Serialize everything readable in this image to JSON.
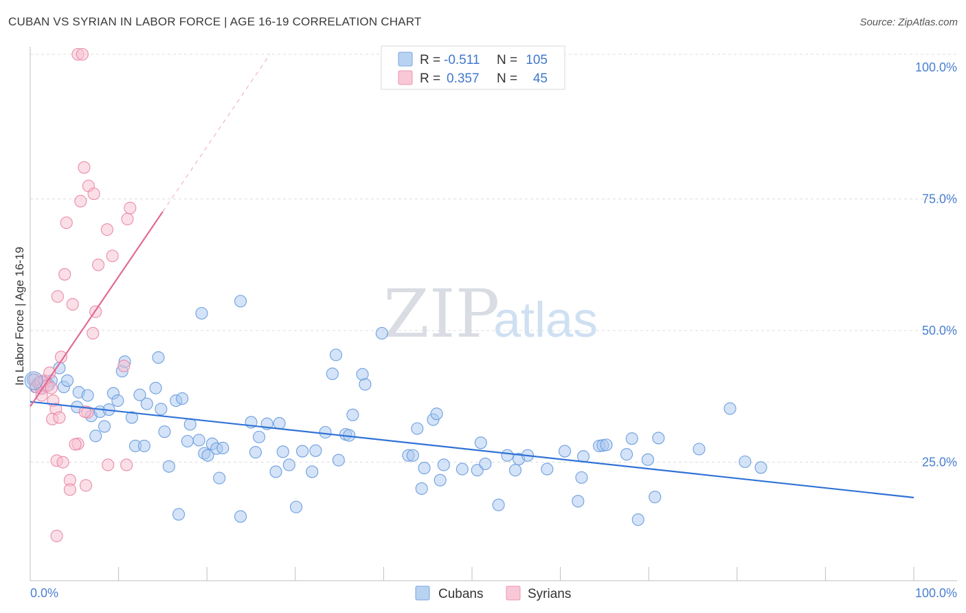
{
  "header": {
    "title": "CUBAN VS SYRIAN IN LABOR FORCE | AGE 16-19 CORRELATION CHART",
    "source": "Source: ZipAtlas.com"
  },
  "watermark": {
    "part1": "ZIP",
    "part2": "atlas"
  },
  "colors": {
    "cubans_fill": "#a9c8f0",
    "cubans_stroke": "#6d9fe0",
    "cubans_line": "#2f72d6",
    "syrians_fill": "#f7bfd0",
    "syrians_stroke": "#ea8aa8",
    "syrians_line": "#e06a94",
    "grid": "#dcdcdc",
    "tick_text": "#4a7fd0"
  },
  "legend_top": {
    "rows": [
      {
        "r_label": "R =",
        "r_value": "-0.511",
        "n_label": "N =",
        "n_value": "105"
      },
      {
        "r_label": "R =",
        "r_value": "0.357",
        "n_label": "N =",
        "n_value": "45"
      }
    ]
  },
  "chart_data": {
    "type": "scatter",
    "title": "CUBAN VS SYRIAN IN LABOR FORCE | AGE 16-19 CORRELATION CHART",
    "xlabel": "",
    "ylabel": "In Labor Force | Age 16-19",
    "xlim": [
      0,
      100
    ],
    "ylim": [
      0,
      100
    ],
    "x_tick_labels": [
      "0.0%",
      "100.0%"
    ],
    "y_ticks": [
      25,
      50,
      75,
      100
    ],
    "y_tick_labels": [
      "25.0%",
      "50.0%",
      "75.0%",
      "100.0%"
    ],
    "grid": true,
    "legend_position": "bottom-center",
    "series": [
      {
        "name": "Cubans",
        "r": -0.511,
        "n": 105,
        "trend": {
          "x": [
            0,
            100
          ],
          "y": [
            34.0,
            15.8
          ]
        },
        "points": [
          [
            0.3,
            38.2
          ],
          [
            0.6,
            36.8
          ],
          [
            0.9,
            37.5
          ],
          [
            1.2,
            36.5
          ],
          [
            1.5,
            37.0
          ],
          [
            1.8,
            37.8
          ],
          [
            2.1,
            37.2
          ],
          [
            2.4,
            38.0
          ],
          [
            3.3,
            40.4
          ],
          [
            3.8,
            36.8
          ],
          [
            4.2,
            38.0
          ],
          [
            5.5,
            35.8
          ],
          [
            5.3,
            33.0
          ],
          [
            6.5,
            35.2
          ],
          [
            6.9,
            31.3
          ],
          [
            7.4,
            27.5
          ],
          [
            7.9,
            32.1
          ],
          [
            8.4,
            29.3
          ],
          [
            8.9,
            32.5
          ],
          [
            9.4,
            35.6
          ],
          [
            9.9,
            34.2
          ],
          [
            10.4,
            39.8
          ],
          [
            10.7,
            41.6
          ],
          [
            11.5,
            31.0
          ],
          [
            11.9,
            25.6
          ],
          [
            12.4,
            35.3
          ],
          [
            12.9,
            25.6
          ],
          [
            13.2,
            33.6
          ],
          [
            14.2,
            36.6
          ],
          [
            14.5,
            42.4
          ],
          [
            14.8,
            32.6
          ],
          [
            15.2,
            28.3
          ],
          [
            15.7,
            21.7
          ],
          [
            16.5,
            34.2
          ],
          [
            16.8,
            12.6
          ],
          [
            17.2,
            34.6
          ],
          [
            17.8,
            26.5
          ],
          [
            18.1,
            29.7
          ],
          [
            19.1,
            26.7
          ],
          [
            19.4,
            50.8
          ],
          [
            19.7,
            24.2
          ],
          [
            20.1,
            23.8
          ],
          [
            20.6,
            26.0
          ],
          [
            21.1,
            25.1
          ],
          [
            21.4,
            19.5
          ],
          [
            21.8,
            25.2
          ],
          [
            23.8,
            53.1
          ],
          [
            23.8,
            12.2
          ],
          [
            25.0,
            30.1
          ],
          [
            25.5,
            24.4
          ],
          [
            25.9,
            27.3
          ],
          [
            26.8,
            29.8
          ],
          [
            27.8,
            20.7
          ],
          [
            28.2,
            29.9
          ],
          [
            28.6,
            24.5
          ],
          [
            29.3,
            22.0
          ],
          [
            30.1,
            14.0
          ],
          [
            30.8,
            24.6
          ],
          [
            31.9,
            20.7
          ],
          [
            32.3,
            24.7
          ],
          [
            33.4,
            28.2
          ],
          [
            34.2,
            39.3
          ],
          [
            34.6,
            42.9
          ],
          [
            34.9,
            22.9
          ],
          [
            35.7,
            27.8
          ],
          [
            36.1,
            27.6
          ],
          [
            36.5,
            31.5
          ],
          [
            37.6,
            39.2
          ],
          [
            37.9,
            37.3
          ],
          [
            39.8,
            47.0
          ],
          [
            42.8,
            23.8
          ],
          [
            43.3,
            23.8
          ],
          [
            43.8,
            28.9
          ],
          [
            44.3,
            17.5
          ],
          [
            44.6,
            21.4
          ],
          [
            45.6,
            30.6
          ],
          [
            46.0,
            31.7
          ],
          [
            46.4,
            19.1
          ],
          [
            46.8,
            22.0
          ],
          [
            48.9,
            21.2
          ],
          [
            51.0,
            26.2
          ],
          [
            50.6,
            21.0
          ],
          [
            51.5,
            22.2
          ],
          [
            53.0,
            14.4
          ],
          [
            54.0,
            23.8
          ],
          [
            54.9,
            21.0
          ],
          [
            55.3,
            23.1
          ],
          [
            56.3,
            23.8
          ],
          [
            58.5,
            21.2
          ],
          [
            60.5,
            24.6
          ],
          [
            62.0,
            15.1
          ],
          [
            62.4,
            19.6
          ],
          [
            62.6,
            23.6
          ],
          [
            64.4,
            25.6
          ],
          [
            64.8,
            25.7
          ],
          [
            65.2,
            25.8
          ],
          [
            67.5,
            24.0
          ],
          [
            68.1,
            27.0
          ],
          [
            68.8,
            11.6
          ],
          [
            69.9,
            23.0
          ],
          [
            70.7,
            15.9
          ],
          [
            71.1,
            27.1
          ],
          [
            75.7,
            25.0
          ],
          [
            79.2,
            32.7
          ],
          [
            80.9,
            22.6
          ],
          [
            82.7,
            21.5
          ]
        ]
      },
      {
        "name": "Syrians",
        "r": 0.357,
        "n": 45,
        "trend": {
          "x": [
            0,
            15
          ],
          "y": [
            33.1,
            70.1
          ]
        },
        "points": [
          [
            0.5,
            38.2
          ],
          [
            0.7,
            36.8
          ],
          [
            1.0,
            37.5
          ],
          [
            1.2,
            37.8
          ],
          [
            1.4,
            36.5
          ],
          [
            1.6,
            38.0
          ],
          [
            1.9,
            37.0
          ],
          [
            2.2,
            39.5
          ],
          [
            2.4,
            36.6
          ],
          [
            1.3,
            35.2
          ],
          [
            2.6,
            34.2
          ],
          [
            2.9,
            32.6
          ],
          [
            2.5,
            30.7
          ],
          [
            3.3,
            31.0
          ],
          [
            3.5,
            42.5
          ],
          [
            3.1,
            54.0
          ],
          [
            3.9,
            58.2
          ],
          [
            4.1,
            68.0
          ],
          [
            4.8,
            52.5
          ],
          [
            5.4,
            26.0
          ],
          [
            5.1,
            25.9
          ],
          [
            5.7,
            72.1
          ],
          [
            6.1,
            78.5
          ],
          [
            6.6,
            75.0
          ],
          [
            7.2,
            73.5
          ],
          [
            7.7,
            60.0
          ],
          [
            7.4,
            51.1
          ],
          [
            7.1,
            47.0
          ],
          [
            8.7,
            66.7
          ],
          [
            9.3,
            61.7
          ],
          [
            10.6,
            40.8
          ],
          [
            10.9,
            22.0
          ],
          [
            11.0,
            68.7
          ],
          [
            11.3,
            70.8
          ],
          [
            8.8,
            22.0
          ],
          [
            6.5,
            32.0
          ],
          [
            6.3,
            18.1
          ],
          [
            4.5,
            19.1
          ],
          [
            4.5,
            17.3
          ],
          [
            3.0,
            22.8
          ],
          [
            3.7,
            22.5
          ],
          [
            6.2,
            32.1
          ],
          [
            3.0,
            8.5
          ],
          [
            5.4,
            100.0
          ],
          [
            5.9,
            100.0
          ]
        ]
      }
    ]
  },
  "bottom_legend": {
    "items": [
      {
        "label": "Cubans"
      },
      {
        "label": "Syrians"
      }
    ]
  }
}
